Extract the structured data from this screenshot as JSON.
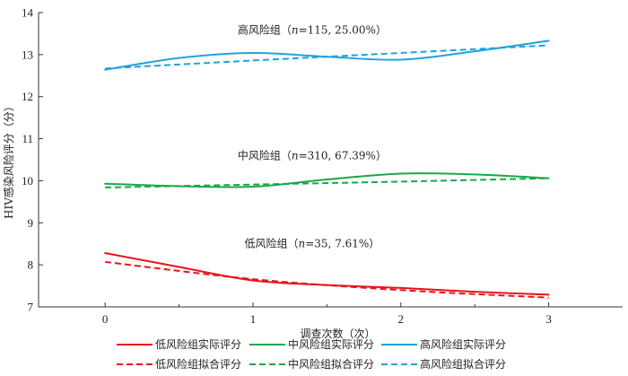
{
  "chart_data": {
    "type": "line",
    "xlabel": "调查次数（次）",
    "ylabel": "HIV感染风险评分（分）",
    "x_ticks": [
      0,
      1,
      2,
      3
    ],
    "y_ticks": [
      7,
      8,
      9,
      10,
      11,
      12,
      13,
      14
    ],
    "xlim": [
      -0.45,
      3.5
    ],
    "ylim": [
      7,
      14
    ],
    "grid": false,
    "legend_placement": "bottom",
    "series": [
      {
        "name": "低风险组实际评分",
        "color": "#e8141c",
        "dash": false,
        "x": [
          0,
          0.5,
          1,
          1.5,
          2,
          2.5,
          3
        ],
        "y": [
          8.28,
          7.95,
          7.63,
          7.52,
          7.45,
          7.36,
          7.29
        ]
      },
      {
        "name": "中风险组实际评分",
        "color": "#1aa84a",
        "dash": false,
        "x": [
          0,
          0.5,
          1,
          1.5,
          2,
          2.5,
          3
        ],
        "y": [
          9.93,
          9.87,
          9.86,
          10.03,
          10.17,
          10.15,
          10.06
        ]
      },
      {
        "name": "高风险组实际评分",
        "color": "#1fa3dc",
        "dash": false,
        "x": [
          0,
          0.5,
          1,
          1.5,
          2,
          2.5,
          3
        ],
        "y": [
          12.64,
          12.92,
          13.04,
          12.95,
          12.88,
          13.08,
          13.33
        ]
      },
      {
        "name": "低风险组拟合评分",
        "color": "#e8141c",
        "dash": true,
        "x": [
          0,
          1,
          2,
          3
        ],
        "y": [
          8.07,
          7.66,
          7.4,
          7.22
        ]
      },
      {
        "name": "中风险组拟合评分",
        "color": "#1aa84a",
        "dash": true,
        "x": [
          0,
          1,
          2,
          3
        ],
        "y": [
          9.84,
          9.91,
          9.98,
          10.06
        ]
      },
      {
        "name": "高风险组拟合评分",
        "color": "#1fa3dc",
        "dash": true,
        "x": [
          0,
          1,
          2,
          3
        ],
        "y": [
          12.67,
          12.86,
          13.04,
          13.22
        ]
      }
    ],
    "annotations": [
      {
        "group": "高风险组",
        "n": "115",
        "pct": "25.00%",
        "x": 1.4,
        "y": 13.58
      },
      {
        "group": "中风险组",
        "n": "310",
        "pct": "67.39%",
        "x": 1.4,
        "y": 10.6
      },
      {
        "group": "低风险组",
        "n": "35",
        "pct": "7.61%",
        "x": 1.4,
        "y": 8.5
      }
    ]
  }
}
